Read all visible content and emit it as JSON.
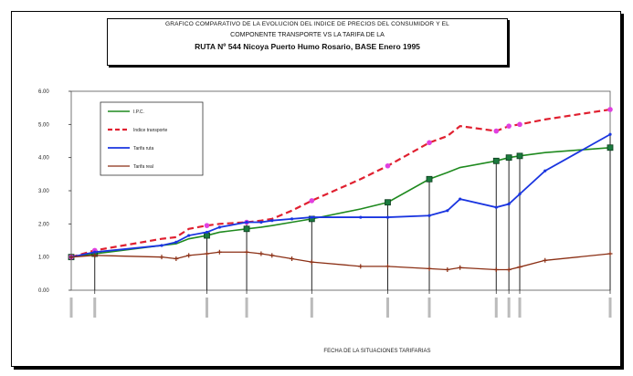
{
  "chart_data": {
    "type": "line",
    "title_lines": [
      "GRAFICO COMPARATIVO DE LA EVOLUCION DEL INDICE DE PRECIOS DEL CONSUMIDOR Y EL",
      "COMPONENTE TRANSPORTE VS LA TARIFA DE LA",
      "RUTA Nº 544  Nicoya Puerto  Humo Rosario,   BASE Enero  1995"
    ],
    "xlabel": "FECHA DE LA SITUACIONES TARIFARIAS",
    "ylabel": "",
    "ylim": [
      0,
      6
    ],
    "yticks": [
      "0.00",
      "1.00",
      "2.00",
      "3.00",
      "4.00",
      "5.00",
      "6.00"
    ],
    "x": [
      0,
      0.13,
      0.5,
      0.58,
      0.65,
      0.75,
      0.82,
      0.97,
      1.05,
      1.11,
      1.22,
      1.33,
      1.6,
      1.75,
      1.98,
      2.08,
      2.15,
      2.35,
      2.42,
      2.48,
      2.62,
      2.98
    ],
    "series": [
      {
        "name": "I.P.C.",
        "color": "#1f8a1f",
        "values": [
          1.0,
          1.1,
          1.35,
          1.4,
          1.55,
          1.65,
          1.75,
          1.85,
          1.9,
          1.95,
          2.05,
          2.15,
          2.45,
          2.65,
          3.35,
          3.55,
          3.7,
          3.9,
          4.0,
          4.05,
          4.15,
          4.3
        ]
      },
      {
        "name": "Indice transporte",
        "color": "#e02030",
        "values": [
          1.0,
          1.2,
          1.55,
          1.6,
          1.85,
          1.95,
          2.0,
          2.05,
          2.1,
          2.15,
          2.4,
          2.7,
          3.35,
          3.75,
          4.45,
          4.65,
          4.95,
          4.8,
          4.95,
          5.0,
          5.15,
          5.45
        ]
      },
      {
        "name": "Tarifa ruta",
        "color": "#1a35e0",
        "values": [
          1.0,
          1.15,
          1.35,
          1.45,
          1.65,
          1.75,
          1.9,
          2.05,
          2.05,
          2.1,
          2.15,
          2.2,
          2.2,
          2.2,
          2.25,
          2.4,
          2.75,
          2.5,
          2.6,
          2.9,
          3.6,
          4.7
        ]
      },
      {
        "name": "Tarifa real",
        "color": "#8b2f14",
        "values": [
          1.0,
          1.05,
          1.0,
          0.95,
          1.05,
          1.1,
          1.15,
          1.15,
          1.1,
          1.05,
          0.95,
          0.85,
          0.72,
          0.72,
          0.65,
          0.62,
          0.68,
          0.62,
          0.62,
          0.7,
          0.9,
          1.1
        ]
      }
    ],
    "legend": "top-left",
    "grid": false
  }
}
